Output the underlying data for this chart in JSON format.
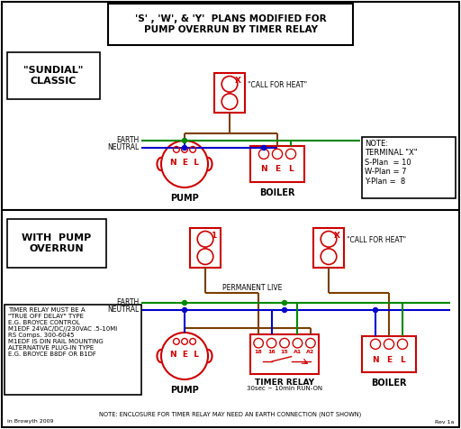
{
  "title_line1": "'S' , 'W', & 'Y'  PLANS MODIFIED FOR",
  "title_line2": "PUMP OVERRUN BY TIMER RELAY",
  "bg_color": "#ffffff",
  "red": "#cc0000",
  "green": "#008800",
  "blue": "#0000cc",
  "brown": "#7B3F00",
  "black": "#000000",
  "note_terminal": "NOTE:\nTERMINAL \"X\"\nS-Plan  = 10\nW-Plan = 7\nY-Plan =  8",
  "timer_note_lines": [
    "TIMER RELAY MUST BE A",
    "\"TRUE OFF DELAY\" TYPE",
    "E.G. BROYCE CONTROL",
    "M1EDF 24VAC/DC//230VAC .5-10MI",
    "RS Comps. 300-6045",
    "M1EDF IS DIN RAIL MOUNTING",
    "ALTERNATIVE PLUG-IN TYPE",
    "E.G. BROYCE B8DF OR B1DF"
  ],
  "bottom_note": "NOTE: ENCLOSURE FOR TIMER RELAY MAY NEED AN EARTH CONNECTION (NOT SHOWN)",
  "copyright": "in Browyth 2009",
  "rev": "Rev 1a"
}
